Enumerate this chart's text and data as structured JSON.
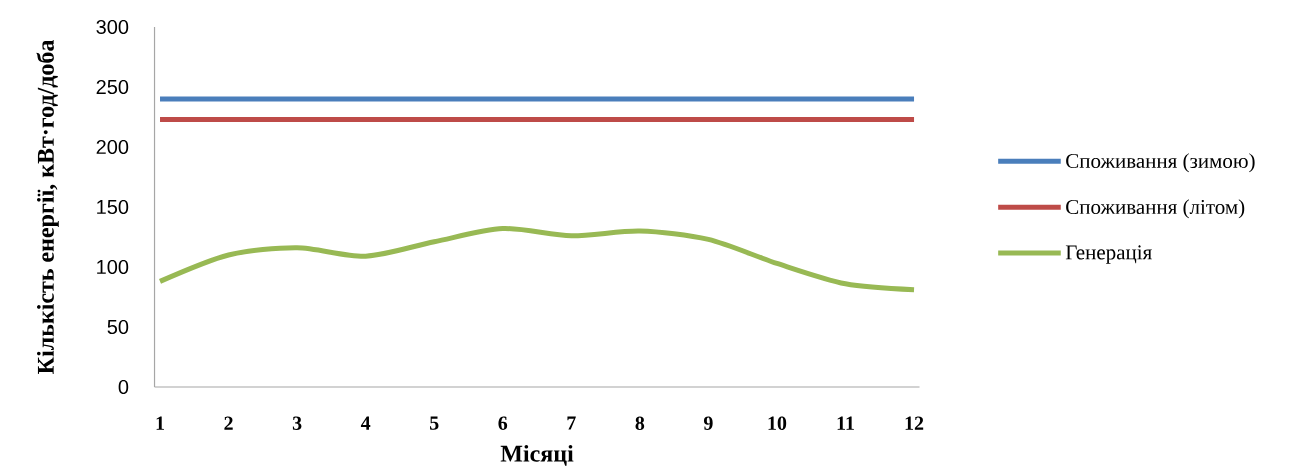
{
  "chart_data": {
    "type": "line",
    "xlabel": "Місяці",
    "ylabel": "Кількість енергії, кВт·год/доба",
    "categories": [
      "1",
      "2",
      "3",
      "4",
      "5",
      "6",
      "7",
      "8",
      "9",
      "10",
      "11",
      "12"
    ],
    "ylim": [
      0,
      300
    ],
    "yticks": [
      0,
      50,
      100,
      150,
      200,
      250,
      300
    ],
    "legend": "right",
    "grid": false,
    "series": [
      {
        "name": "Споживання (зимою)",
        "color": "#4a7ebb",
        "values": [
          240,
          240,
          240,
          240,
          240,
          240,
          240,
          240,
          240,
          240,
          240,
          240
        ]
      },
      {
        "name": "Споживання (літом)",
        "color": "#be4b48",
        "values": [
          223,
          223,
          223,
          223,
          223,
          223,
          223,
          223,
          223,
          223,
          223,
          223
        ]
      },
      {
        "name": "Генерація",
        "color": "#98b954",
        "values": [
          88,
          110,
          116,
          109,
          121,
          132,
          126,
          130,
          123,
          103,
          86,
          81
        ]
      }
    ]
  }
}
